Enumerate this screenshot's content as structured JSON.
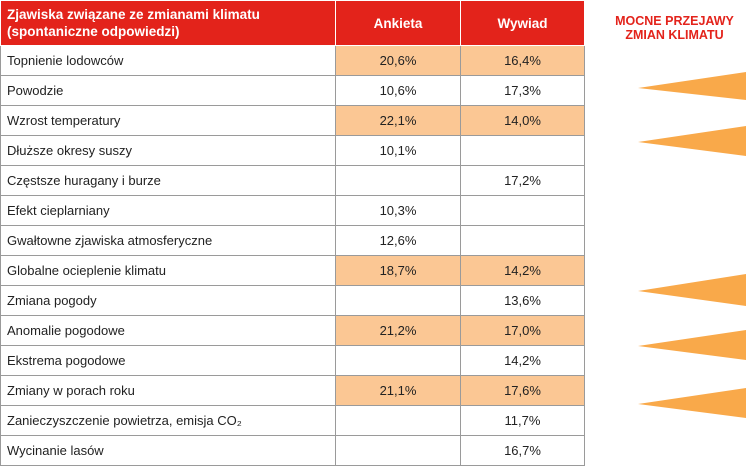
{
  "header": {
    "title": [
      "Zjawiska związane ze zmianami klimatu",
      "(spontaniczne odpowiedzi)"
    ],
    "columns": [
      "Ankieta",
      "Wywiad"
    ]
  },
  "side_label": [
    "MOCNE PRZEJAWY",
    "ZMIAN KLIMATU"
  ],
  "rows": [
    [
      "Topnienie lodowców",
      "20,6%",
      "16,4%"
    ],
    [
      "Powodzie",
      "10,6%",
      "17,3%"
    ],
    [
      "Wzrost temperatury",
      "22,1%",
      "14,0%"
    ],
    [
      "Dłuższe okresy suszy",
      "10,1%",
      null
    ],
    [
      "Częstsze huragany i burze",
      null,
      "17,2%"
    ],
    [
      "Efekt cieplarniany",
      "10,3%",
      null
    ],
    [
      "Gwałtowne zjawiska atmosferyczne",
      "12,6%",
      null
    ],
    [
      "Globalne ocieplenie klimatu",
      "18,7%",
      "14,2%"
    ],
    [
      "Zmiana  pogody",
      null,
      "13,6%"
    ],
    [
      "Anomalie pogodowe",
      "21,2%",
      "17,0%"
    ],
    [
      "Ekstrema pogodowe",
      null,
      "14,2%"
    ],
    [
      "Zmiany w porach roku",
      "21,1%",
      "17,6%"
    ],
    [
      "Zanieczyszczenie powietrza, emisja CO₂",
      null,
      "11,7%"
    ],
    [
      "Wycinanie lasów",
      null,
      "16,7%"
    ]
  ]
}
